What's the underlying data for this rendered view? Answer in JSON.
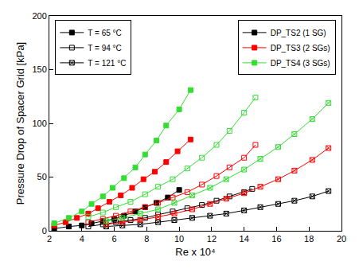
{
  "chart_data": {
    "type": "line",
    "x_label": "Re x 10⁴",
    "y_label": "Pressure Drop of Spacer Grid [kPa]",
    "xlim": [
      2,
      20
    ],
    "xticks": [
      2,
      4,
      6,
      8,
      10,
      12,
      14,
      16,
      18,
      20
    ],
    "ylim": [
      0,
      200
    ],
    "yticks": [
      0,
      50,
      100,
      150,
      200
    ],
    "grid": false,
    "temperature_legend": [
      {
        "label": "T = 65 °C",
        "marker": "square"
      },
      {
        "label": "T = 94 °C",
        "marker": "square-open"
      },
      {
        "label": "T = 121 °C",
        "marker": "square-x-open"
      }
    ],
    "series": [
      {
        "name": "DP_TS2 (1 SG)",
        "color": "#000000",
        "temperature": "T = 65 °C",
        "x": [
          2.3,
          3.2,
          4.0,
          4.6,
          5.3,
          6.0,
          6.6,
          7.3,
          7.9,
          8.6,
          9.3,
          10.0
        ],
        "values": [
          2,
          4,
          5,
          7,
          9,
          11,
          14,
          18,
          22,
          26,
          31,
          38
        ]
      },
      {
        "name": "DP_TS3 (2 SGs)",
        "color": "#ff0000",
        "temperature": "T = 65 °C",
        "x": [
          2.3,
          3.0,
          3.7,
          4.4,
          5.0,
          5.7,
          6.4,
          7.1,
          7.8,
          8.5,
          9.2,
          9.9,
          10.7
        ],
        "values": [
          5,
          8,
          12,
          16,
          21,
          27,
          33,
          40,
          48,
          55,
          64,
          74,
          85
        ]
      },
      {
        "name": "DP_TS4 (3 SGs)",
        "color": "#33dd33",
        "temperature": "T = 65 °C",
        "x": [
          2.3,
          3.2,
          4.0,
          4.6,
          5.3,
          5.9,
          6.6,
          7.3,
          7.9,
          8.6,
          9.2,
          10.0,
          10.7
        ],
        "values": [
          7,
          12,
          18,
          25,
          32,
          40,
          49,
          59,
          71,
          84,
          98,
          113,
          131
        ]
      },
      {
        "name": "DP_TS2 (1 SG)",
        "color": "#000000",
        "temperature": "T = 94 °C",
        "x": [
          4.4,
          5.3,
          6.1,
          7.0,
          7.9,
          8.7,
          9.6,
          10.5,
          11.4,
          12.3,
          13.1,
          14.0,
          14.5
        ],
        "values": [
          4,
          6,
          8,
          10,
          12,
          15,
          18,
          21,
          24,
          28,
          32,
          36,
          39
        ]
      },
      {
        "name": "DP_TS3 (2 SGs)",
        "color": "#ff0000",
        "temperature": "T = 94 °C",
        "x": [
          4.4,
          5.3,
          6.1,
          7.0,
          7.9,
          8.7,
          9.6,
          10.5,
          11.4,
          12.3,
          13.1,
          14.0,
          14.7
        ],
        "values": [
          8,
          11,
          14,
          18,
          22,
          26,
          31,
          36,
          43,
          51,
          59,
          68,
          80
        ]
      },
      {
        "name": "DP_TS4 (3 SGs)",
        "color": "#33dd33",
        "temperature": "T = 94 °C",
        "x": [
          4.4,
          5.3,
          6.1,
          7.0,
          7.9,
          8.7,
          9.6,
          10.5,
          11.4,
          12.3,
          13.1,
          14.0,
          14.7
        ],
        "values": [
          13,
          17,
          22,
          27,
          34,
          41,
          48,
          58,
          68,
          80,
          93,
          110,
          124
        ]
      },
      {
        "name": "DP_TS2 (1 SG)",
        "color": "#000000",
        "temperature": "T = 121 °C",
        "x": [
          5.5,
          6.5,
          7.6,
          8.7,
          9.7,
          10.8,
          11.9,
          12.9,
          14.0,
          15.0,
          16.1,
          17.1,
          18.2,
          19.2
        ],
        "values": [
          4,
          5,
          6,
          8,
          10,
          12,
          14,
          16,
          19,
          22,
          25,
          28,
          32,
          37
        ]
      },
      {
        "name": "DP_TS3 (2 SGs)",
        "color": "#ff0000",
        "temperature": "T = 121 °C",
        "x": [
          5.5,
          6.5,
          7.6,
          8.7,
          9.7,
          10.8,
          11.9,
          12.9,
          14.0,
          15.0,
          16.1,
          17.1,
          18.2,
          19.2
        ],
        "values": [
          6,
          8,
          10,
          13,
          16,
          20,
          25,
          30,
          35,
          41,
          48,
          56,
          66,
          77
        ]
      },
      {
        "name": "DP_TS4 (3 SGs)",
        "color": "#33dd33",
        "temperature": "T = 121 °C",
        "x": [
          5.5,
          6.5,
          7.6,
          8.7,
          9.7,
          10.8,
          11.9,
          12.9,
          14.0,
          15.0,
          16.1,
          17.1,
          18.2,
          19.2
        ],
        "values": [
          9,
          12,
          16,
          20,
          26,
          33,
          40,
          48,
          57,
          67,
          78,
          90,
          104,
          119
        ]
      }
    ]
  }
}
